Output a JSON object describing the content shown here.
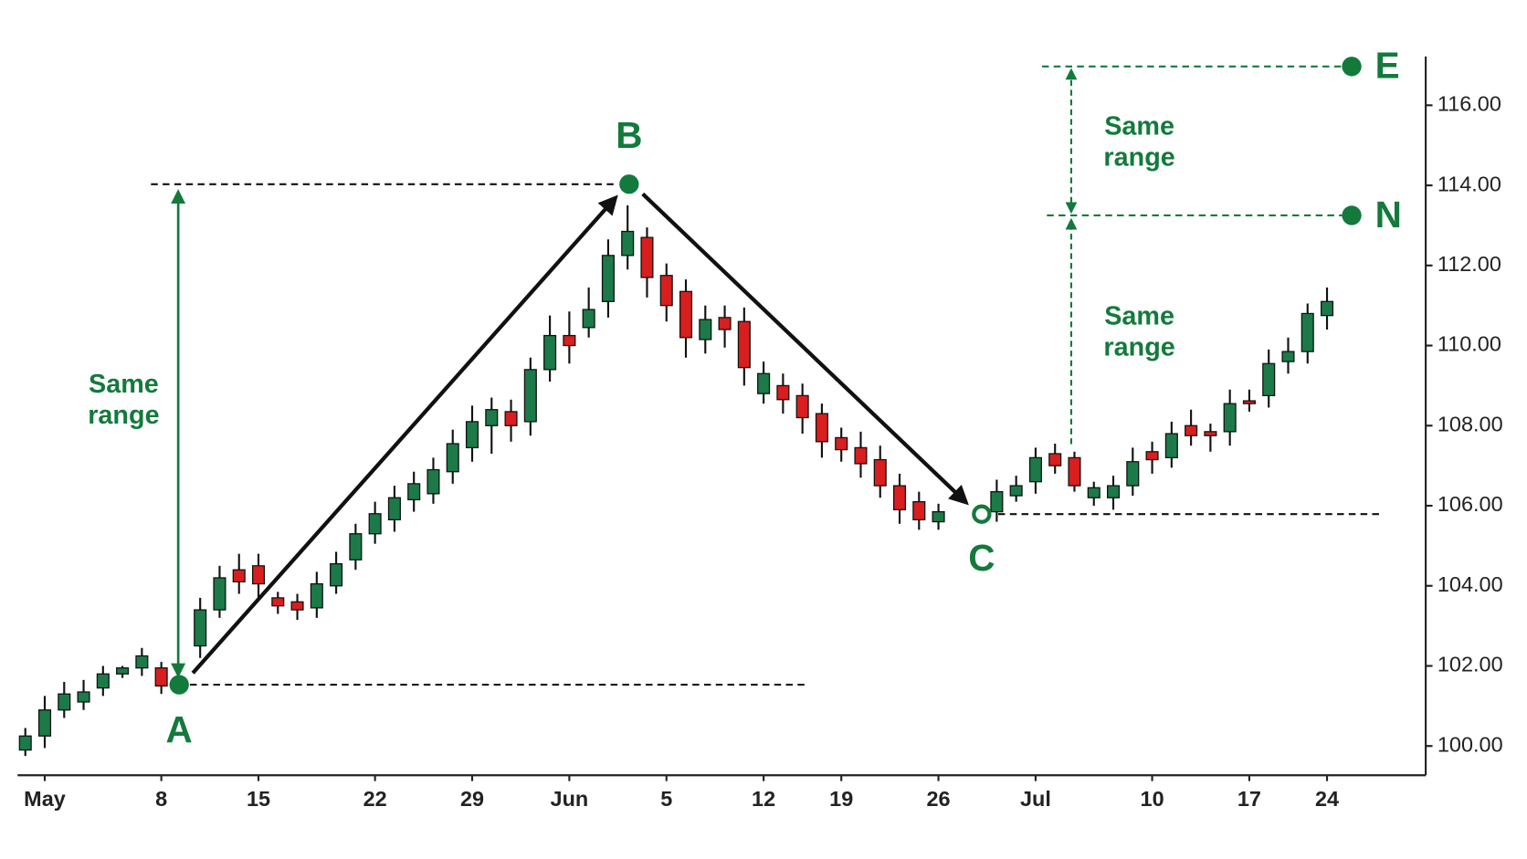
{
  "chart_data": {
    "type": "candlestick",
    "categories": [
      null,
      "May",
      null,
      null,
      null,
      null,
      null,
      "8",
      null,
      null,
      null,
      null,
      "15",
      null,
      null,
      null,
      null,
      null,
      "22",
      null,
      null,
      null,
      null,
      "29",
      null,
      null,
      null,
      null,
      "Jun",
      null,
      null,
      null,
      null,
      "5",
      null,
      null,
      null,
      null,
      "12",
      null,
      null,
      null,
      "19",
      null,
      null,
      null,
      null,
      "26",
      null,
      null,
      null,
      null,
      "Jul",
      null,
      null,
      null,
      null,
      null,
      "10",
      null,
      null,
      null,
      null,
      "17",
      null,
      null,
      null,
      "24"
    ],
    "open": [
      99.9,
      100.25,
      100.9,
      101.1,
      101.45,
      101.8,
      101.95,
      101.95,
      null,
      102.5,
      103.4,
      104.4,
      104.5,
      103.7,
      103.6,
      103.45,
      104.0,
      104.65,
      105.3,
      105.65,
      106.15,
      106.3,
      106.85,
      107.45,
      108.0,
      108.35,
      108.1,
      109.4,
      110.25,
      110.45,
      111.1,
      112.25,
      112.7,
      111.75,
      111.35,
      110.15,
      110.7,
      110.6,
      108.8,
      109.0,
      108.75,
      108.3,
      107.7,
      107.45,
      107.15,
      106.5,
      106.1,
      105.6,
      null,
      null,
      105.85,
      106.25,
      106.6,
      107.3,
      107.2,
      106.2,
      106.2,
      106.5,
      107.35,
      107.2,
      108.0,
      107.85,
      107.85,
      108.62,
      108.75,
      109.6,
      109.85,
      110.75
    ],
    "high": [
      100.45,
      101.25,
      101.6,
      101.65,
      102.0,
      102.0,
      102.45,
      102.1,
      null,
      103.7,
      104.5,
      104.8,
      104.8,
      103.85,
      103.8,
      104.35,
      104.85,
      105.55,
      106.1,
      106.5,
      106.85,
      107.2,
      107.9,
      108.5,
      108.7,
      108.65,
      109.7,
      110.75,
      110.85,
      111.45,
      112.65,
      113.5,
      112.95,
      112.05,
      111.65,
      111.0,
      111.0,
      110.95,
      109.6,
      109.3,
      109.05,
      108.55,
      107.95,
      107.85,
      107.5,
      106.8,
      106.35,
      106.05,
      null,
      null,
      106.65,
      106.75,
      107.45,
      107.55,
      107.35,
      106.6,
      106.75,
      107.45,
      107.6,
      108.1,
      108.4,
      108.05,
      108.9,
      108.9,
      109.9,
      110.2,
      111.05,
      111.45
    ],
    "low": [
      99.75,
      99.95,
      100.7,
      100.9,
      101.25,
      101.7,
      101.75,
      101.3,
      null,
      102.2,
      103.2,
      103.8,
      103.7,
      103.3,
      103.15,
      103.2,
      103.8,
      104.4,
      105.05,
      105.35,
      105.85,
      106.05,
      106.55,
      107.1,
      107.3,
      107.6,
      107.75,
      109.1,
      109.55,
      110.2,
      110.7,
      111.9,
      111.2,
      110.6,
      109.7,
      109.8,
      109.95,
      109.0,
      108.55,
      108.3,
      107.8,
      107.2,
      107.1,
      106.7,
      106.2,
      105.55,
      105.4,
      105.4,
      null,
      null,
      105.6,
      106.1,
      106.3,
      106.8,
      106.35,
      106.0,
      105.9,
      106.25,
      106.8,
      106.95,
      107.5,
      107.35,
      107.5,
      108.35,
      108.45,
      109.3,
      109.55,
      110.4
    ],
    "close": [
      100.25,
      100.9,
      101.3,
      101.35,
      101.8,
      101.95,
      102.25,
      101.5,
      null,
      103.4,
      104.2,
      104.1,
      104.05,
      103.5,
      103.4,
      104.05,
      104.55,
      105.3,
      105.8,
      106.2,
      106.55,
      106.9,
      107.55,
      108.1,
      108.4,
      108.0,
      109.4,
      110.25,
      110.0,
      110.9,
      112.25,
      112.85,
      111.7,
      111.0,
      110.2,
      110.65,
      110.4,
      109.45,
      109.3,
      108.65,
      108.2,
      107.6,
      107.4,
      107.05,
      106.5,
      105.9,
      105.65,
      105.85,
      null,
      null,
      106.35,
      106.5,
      107.2,
      107.0,
      106.5,
      106.45,
      106.5,
      107.1,
      107.15,
      107.8,
      107.75,
      107.75,
      108.55,
      108.55,
      109.55,
      109.85,
      110.8,
      111.1
    ],
    "up_color": "#1b7a47",
    "down_color": "#d81e1e",
    "ylim": [
      99.27,
      117.17
    ],
    "yticks": [
      {
        "value": 100,
        "label": "100.00"
      },
      {
        "value": 102,
        "label": "102.00"
      },
      {
        "value": 104,
        "label": "104.00"
      },
      {
        "value": 106,
        "label": "106.00"
      },
      {
        "value": 108,
        "label": "108.00"
      },
      {
        "value": 110,
        "label": "110.00"
      },
      {
        "value": 112,
        "label": "112.00"
      },
      {
        "value": 114,
        "label": "114.00"
      },
      {
        "value": 116,
        "label": "116.00"
      }
    ],
    "annotation_color": "#137a3c",
    "annotations": {
      "points": [
        {
          "label": "A",
          "value": 101.53
        },
        {
          "label": "B",
          "value": 114.03
        },
        {
          "label": "C",
          "value": 105.79
        },
        {
          "label": "E",
          "value": 116.97
        },
        {
          "label": "N",
          "value": 113.25
        }
      ],
      "range_notes": [
        {
          "lines": [
            "Same",
            "range"
          ]
        },
        {
          "lines": [
            "Same",
            "range"
          ]
        },
        {
          "lines": [
            "Same",
            "range"
          ]
        }
      ]
    }
  }
}
